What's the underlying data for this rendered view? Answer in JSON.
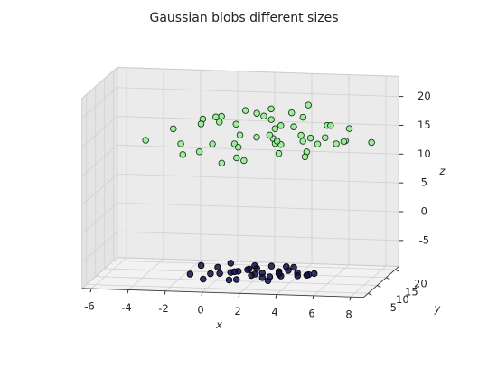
{
  "chart_data": {
    "type": "scatter3d",
    "title": "Gaussian blobs different sizes",
    "xlabel": "x",
    "ylabel": "y",
    "zlabel": "z",
    "xlim": [
      -6.5,
      8.7
    ],
    "ylim": [
      2.5,
      22
    ],
    "zlim": [
      -9.5,
      23.5
    ],
    "xticks": [
      -6,
      -4,
      -2,
      0,
      2,
      4,
      6,
      8
    ],
    "yticks": [
      5,
      10,
      15,
      20
    ],
    "zticks": [
      -5,
      0,
      5,
      10,
      15,
      20
    ],
    "grid": true,
    "series": [
      {
        "color": "#90ee90",
        "x": [
          -3.6,
          -2.5,
          -1.9,
          -1.2,
          -0.8,
          -0.3,
          0.1,
          0.5,
          0.9,
          1.2,
          1.5,
          1.8,
          2.0,
          2.3,
          2.6,
          2.9,
          3.1,
          3.4,
          3.7,
          4.0,
          4.3,
          4.6,
          4.9,
          5.2,
          5.6,
          6.0,
          6.5,
          7.0,
          8.3,
          -1.5,
          -0.5,
          0.3,
          1.0,
          1.7,
          2.4,
          3.0,
          3.6,
          4.2,
          4.8,
          5.5,
          6.2,
          0.7,
          2.1,
          3.3,
          4.5,
          -1.0,
          1.3,
          2.8,
          5.0,
          6.8
        ],
        "y": [
          8,
          12,
          10,
          15,
          9,
          13,
          7,
          16,
          11,
          14,
          6,
          18,
          12,
          9,
          15,
          10,
          13,
          17,
          8,
          12,
          14,
          11,
          16,
          9,
          13,
          10,
          15,
          12,
          11,
          7,
          17,
          10,
          13,
          8,
          16,
          12,
          9,
          14,
          11,
          17,
          13,
          6,
          19,
          10,
          15,
          12,
          9,
          14,
          8,
          11
        ],
        "z": [
          15,
          16,
          14,
          17,
          13,
          18,
          15,
          16,
          14,
          19,
          13,
          17,
          15,
          20,
          14,
          16,
          12,
          18,
          15,
          17,
          14,
          19,
          13,
          16,
          15,
          18,
          14,
          17,
          15,
          13,
          16,
          19,
          15,
          12,
          17,
          14,
          18,
          15,
          13,
          16,
          14,
          12,
          18,
          15,
          20,
          17,
          14,
          16,
          13,
          15
        ]
      },
      {
        "color": "#10104e",
        "x": [
          -1.2,
          -0.8,
          -0.4,
          0.0,
          0.3,
          0.6,
          0.9,
          1.2,
          1.5,
          1.8,
          2.0,
          2.2,
          2.5,
          2.8,
          3.0,
          3.3,
          3.6,
          3.9,
          4.2,
          4.6,
          5.0,
          5.4,
          0.5,
          1.4,
          2.3,
          3.2,
          4.1,
          1.0,
          2.7,
          3.5,
          -0.2,
          4.8,
          1.9,
          2.9
        ],
        "y": [
          8,
          10,
          7,
          11,
          9,
          12,
          8,
          10,
          13,
          9,
          11,
          7,
          10,
          12,
          8,
          11,
          9,
          10,
          12,
          8,
          10,
          9,
          13,
          7,
          9,
          12,
          11,
          10,
          8,
          13,
          9,
          11,
          12,
          10
        ],
        "z": [
          -8,
          -7,
          -8.5,
          -7.5,
          -8,
          -7,
          -8.8,
          -7.8,
          -8.2,
          -7.2,
          -8.5,
          -7.6,
          -8,
          -7.3,
          -8.7,
          -7.9,
          -8.1,
          -7.4,
          -8.3,
          -7.7,
          -8,
          -7.5,
          -8.9,
          -8.4,
          -6.9,
          -8.6,
          -7.1,
          -7.9,
          -8.2,
          -7.6,
          -8.1,
          -8.4,
          -7.3,
          -8.6
        ]
      }
    ]
  }
}
